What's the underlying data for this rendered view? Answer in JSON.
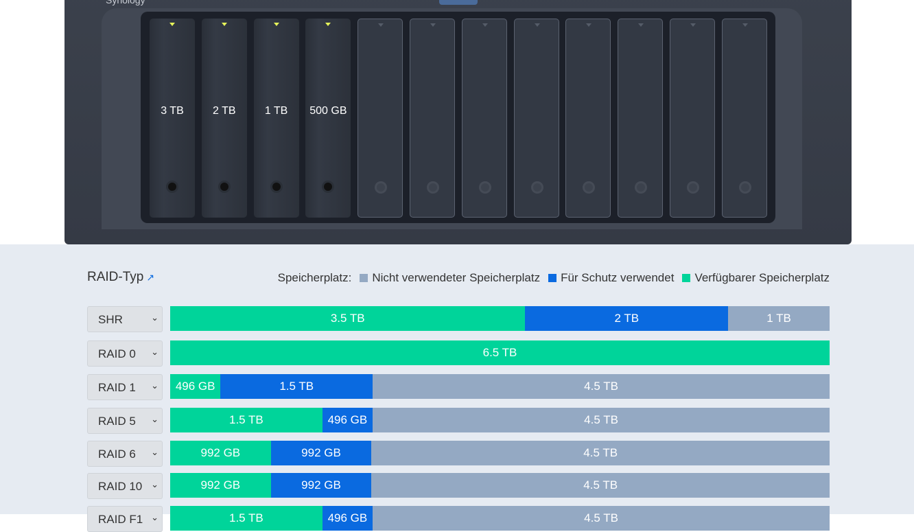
{
  "device": {
    "brand": "Synology",
    "bays": [
      {
        "label": "3 TB",
        "installed": true
      },
      {
        "label": "2 TB",
        "installed": true
      },
      {
        "label": "1 TB",
        "installed": true
      },
      {
        "label": "500 GB",
        "installed": true
      },
      {
        "installed": false
      },
      {
        "installed": false
      },
      {
        "installed": false
      },
      {
        "installed": false
      },
      {
        "installed": false
      },
      {
        "installed": false
      },
      {
        "installed": false
      },
      {
        "installed": false
      }
    ]
  },
  "raid_title": "RAID-Typ",
  "legend": {
    "prefix": "Speicherplatz:",
    "items": [
      {
        "label": "Nicht verwendeter Speicherplatz",
        "color": "#94a9c3"
      },
      {
        "label": "Für Schutz verwendet",
        "color": "#0a6ae0"
      },
      {
        "label": "Verfügbarer Speicherplatz",
        "color": "#00d49a"
      }
    ]
  },
  "colors": {
    "available": "#00d49a",
    "protection": "#0a6ae0",
    "unused": "#94a9c3"
  },
  "rows": [
    {
      "type": "SHR",
      "available": {
        "label": "3.5 TB",
        "tb": 3.5
      },
      "protection": {
        "label": "2 TB",
        "tb": 2
      },
      "unused": {
        "label": "1 TB",
        "tb": 1
      }
    },
    {
      "type": "RAID 0",
      "available": {
        "label": "6.5 TB",
        "tb": 6.5
      },
      "protection": null,
      "unused": null
    },
    {
      "type": "RAID 1",
      "available": {
        "label": "496 GB",
        "tb": 0.496
      },
      "protection": {
        "label": "1.5 TB",
        "tb": 1.5
      },
      "unused": {
        "label": "4.5 TB",
        "tb": 4.5
      }
    },
    {
      "type": "RAID 5",
      "available": {
        "label": "1.5 TB",
        "tb": 1.5
      },
      "protection": {
        "label": "496 GB",
        "tb": 0.496
      },
      "unused": {
        "label": "4.5 TB",
        "tb": 4.5
      }
    },
    {
      "type": "RAID 6",
      "available": {
        "label": "992 GB",
        "tb": 0.992
      },
      "protection": {
        "label": "992 GB",
        "tb": 0.992
      },
      "unused": {
        "label": "4.5 TB",
        "tb": 4.5
      }
    },
    {
      "type": "RAID 10",
      "available": {
        "label": "992 GB",
        "tb": 0.992
      },
      "protection": {
        "label": "992 GB",
        "tb": 0.992
      },
      "unused": {
        "label": "4.5 TB",
        "tb": 4.5
      }
    },
    {
      "type": "RAID F1",
      "available": {
        "label": "1.5 TB",
        "tb": 1.5
      },
      "protection": {
        "label": "496 GB",
        "tb": 0.496
      },
      "unused": {
        "label": "4.5 TB",
        "tb": 4.5
      }
    }
  ]
}
